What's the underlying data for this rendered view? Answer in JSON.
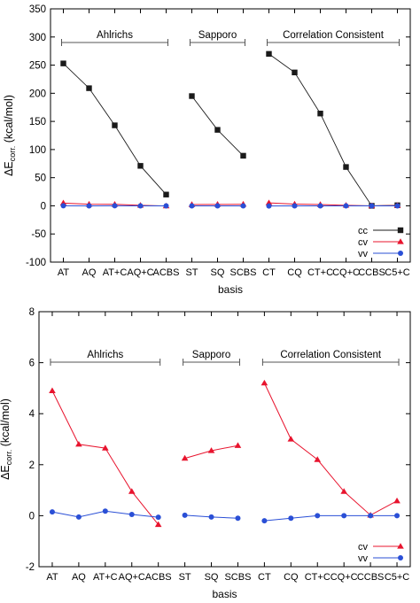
{
  "chart_data": [
    {
      "type": "line",
      "ylabel": "ΔE",
      "ylabel_sub": "corr.",
      "ylabel_unit": "(kcal/mol)",
      "xlabel": "basis",
      "categories": [
        "AT",
        "AQ",
        "AT+C",
        "AQ+C",
        "ACBS",
        "ST",
        "SQ",
        "SCBS",
        "CT",
        "CQ",
        "CT+C",
        "CQ+C",
        "CCBS",
        "C5+C"
      ],
      "ylim": [
        -100,
        350
      ],
      "yticks": [
        -100,
        -50,
        0,
        50,
        100,
        150,
        200,
        250,
        300,
        350
      ],
      "legend_position": "bottom-right",
      "groups": [
        {
          "label": "Ahlrichs",
          "start": 0,
          "end": 4
        },
        {
          "label": "Sapporo",
          "start": 5,
          "end": 7
        },
        {
          "label": "Correlation Consistent",
          "start": 8,
          "end": 13
        }
      ],
      "series": [
        {
          "name": "cc",
          "color": "#1a1a1a",
          "marker": "square",
          "segments": [
            [
              [
                0,
                253
              ],
              [
                1,
                209
              ],
              [
                2,
                143
              ],
              [
                3,
                71
              ],
              [
                4,
                20
              ]
            ],
            [
              [
                5,
                195
              ],
              [
                6,
                135
              ],
              [
                7,
                89
              ]
            ],
            [
              [
                8,
                270
              ],
              [
                9,
                237
              ],
              [
                10,
                164
              ],
              [
                11,
                69
              ],
              [
                12,
                0
              ],
              [
                13,
                1
              ]
            ]
          ]
        },
        {
          "name": "cv",
          "color": "#e8142e",
          "marker": "triangle",
          "segments": [
            [
              [
                0,
                4.9
              ],
              [
                1,
                2.8
              ],
              [
                2,
                2.6
              ],
              [
                3,
                0.9
              ],
              [
                4,
                -0.3
              ]
            ],
            [
              [
                5,
                2.2
              ],
              [
                6,
                2.5
              ],
              [
                7,
                2.7
              ]
            ],
            [
              [
                8,
                5.2
              ],
              [
                9,
                3.0
              ],
              [
                10,
                2.2
              ],
              [
                11,
                0.9
              ],
              [
                12,
                0.0
              ],
              [
                13,
                0.5
              ]
            ]
          ]
        },
        {
          "name": "vv",
          "color": "#2a4fd6",
          "marker": "circle",
          "segments": [
            [
              [
                0,
                0.1
              ],
              [
                1,
                -0.05
              ],
              [
                2,
                0.15
              ],
              [
                3,
                0.0
              ],
              [
                4,
                -0.05
              ]
            ],
            [
              [
                5,
                0.0
              ],
              [
                6,
                -0.05
              ],
              [
                7,
                -0.1
              ]
            ],
            [
              [
                8,
                -0.2
              ],
              [
                9,
                -0.1
              ],
              [
                10,
                0.0
              ],
              [
                11,
                0.0
              ],
              [
                12,
                0.0
              ],
              [
                13,
                0.0
              ]
            ]
          ]
        }
      ]
    },
    {
      "type": "line",
      "ylabel": "ΔE",
      "ylabel_sub": "corr.",
      "ylabel_unit": "(kcal/mol)",
      "xlabel": "basis",
      "categories": [
        "AT",
        "AQ",
        "AT+C",
        "AQ+C",
        "ACBS",
        "ST",
        "SQ",
        "SCBS",
        "CT",
        "CQ",
        "CT+C",
        "CQ+C",
        "CCBS",
        "C5+C"
      ],
      "ylim": [
        -2,
        8
      ],
      "yticks": [
        -2,
        0,
        2,
        4,
        6,
        8
      ],
      "legend_position": "bottom-right",
      "groups": [
        {
          "label": "Ahlrichs",
          "start": 0,
          "end": 4
        },
        {
          "label": "Sapporo",
          "start": 5,
          "end": 7
        },
        {
          "label": "Correlation Consistent",
          "start": 8,
          "end": 13
        }
      ],
      "series": [
        {
          "name": "cv",
          "color": "#e8142e",
          "marker": "triangle",
          "segments": [
            [
              [
                0,
                4.9
              ],
              [
                1,
                2.8
              ],
              [
                2,
                2.65
              ],
              [
                3,
                0.95
              ],
              [
                4,
                -0.35
              ]
            ],
            [
              [
                5,
                2.25
              ],
              [
                6,
                2.55
              ],
              [
                7,
                2.75
              ]
            ],
            [
              [
                8,
                5.2
              ],
              [
                9,
                3.0
              ],
              [
                10,
                2.2
              ],
              [
                11,
                0.95
              ],
              [
                12,
                0.02
              ],
              [
                13,
                0.58
              ]
            ]
          ]
        },
        {
          "name": "vv",
          "color": "#2a4fd6",
          "marker": "circle",
          "segments": [
            [
              [
                0,
                0.15
              ],
              [
                1,
                -0.05
              ],
              [
                2,
                0.18
              ],
              [
                3,
                0.05
              ],
              [
                4,
                -0.06
              ]
            ],
            [
              [
                5,
                0.02
              ],
              [
                6,
                -0.05
              ],
              [
                7,
                -0.1
              ]
            ],
            [
              [
                8,
                -0.2
              ],
              [
                9,
                -0.1
              ],
              [
                10,
                0.0
              ],
              [
                11,
                0.0
              ],
              [
                12,
                0.0
              ],
              [
                13,
                0.0
              ]
            ]
          ]
        }
      ]
    }
  ]
}
